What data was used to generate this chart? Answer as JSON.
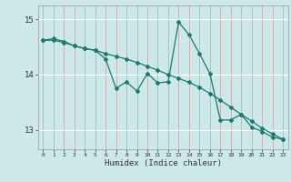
{
  "xlabel": "Humidex (Indice chaleur)",
  "bg_color": "#cce8e8",
  "line_color": "#1a7a6e",
  "xlim": [
    -0.5,
    23.5
  ],
  "ylim": [
    12.65,
    15.25
  ],
  "yticks": [
    13,
    14,
    15
  ],
  "xticks": [
    0,
    1,
    2,
    3,
    4,
    5,
    6,
    7,
    8,
    9,
    10,
    11,
    12,
    13,
    14,
    15,
    16,
    17,
    18,
    19,
    20,
    21,
    22,
    23
  ],
  "series1_x": [
    0,
    1,
    2,
    3,
    4,
    5,
    6,
    7,
    8,
    9,
    10,
    11,
    12,
    13,
    14,
    15,
    16,
    17,
    18,
    19,
    20,
    21,
    22,
    23
  ],
  "series1_y": [
    14.62,
    14.65,
    14.6,
    14.52,
    14.47,
    14.44,
    14.28,
    13.75,
    13.87,
    13.7,
    14.02,
    13.85,
    13.87,
    14.95,
    14.72,
    14.38,
    14.02,
    13.18,
    13.18,
    13.28,
    13.05,
    12.97,
    12.87,
    12.83
  ],
  "series2_x": [
    0,
    1,
    2,
    3,
    4,
    5,
    6,
    7,
    8,
    9,
    10,
    11,
    12,
    13,
    14,
    15,
    16,
    17,
    18,
    19,
    20,
    21,
    22,
    23
  ],
  "series2_y": [
    14.62,
    14.62,
    14.58,
    14.52,
    14.47,
    14.44,
    14.38,
    14.33,
    14.28,
    14.22,
    14.15,
    14.08,
    14.0,
    13.93,
    13.86,
    13.77,
    13.66,
    13.54,
    13.41,
    13.28,
    13.16,
    13.03,
    12.93,
    12.83
  ]
}
